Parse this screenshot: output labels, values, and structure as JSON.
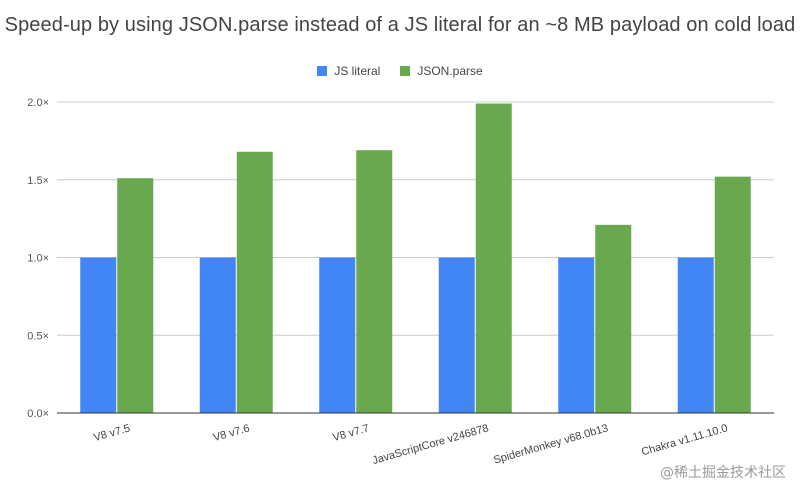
{
  "chart_data": {
    "type": "bar",
    "title": "Speed-up by using JSON.parse instead of a JS literal for an ~8 MB payload on cold load",
    "xlabel": "",
    "ylabel": "",
    "categories": [
      "V8 v7.5",
      "V8 v7.6",
      "V8 v7.7",
      "JavaScriptCore v246878",
      "SpiderMonkey v68.0b13",
      "Chakra v1.11.10.0"
    ],
    "series": [
      {
        "name": "JS literal",
        "color": "#4285f4",
        "values": [
          1.0,
          1.0,
          1.0,
          1.0,
          1.0,
          1.0
        ]
      },
      {
        "name": "JSON.parse",
        "color": "#6aa84f",
        "values": [
          1.51,
          1.68,
          1.69,
          1.99,
          1.21,
          1.52
        ]
      }
    ],
    "ylim": [
      0,
      2.0
    ],
    "yticks": [
      0,
      0.5,
      1.0,
      1.5,
      2.0
    ],
    "ytick_labels": [
      "0.0×",
      "0.5×",
      "1.0×",
      "1.5×",
      "2.0×"
    ],
    "grid": true,
    "legend_position": "top-center"
  },
  "watermark": "@稀土掘金技术社区"
}
